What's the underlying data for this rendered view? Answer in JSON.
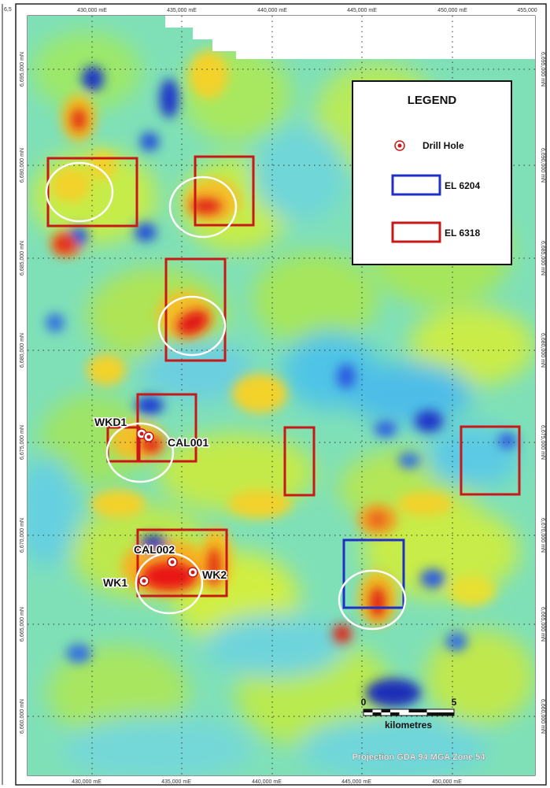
{
  "map": {
    "corner_label": "6,5",
    "easting_labels": [
      "430,000 mE",
      "435,000 mE",
      "440,000 mE",
      "445,000 mE",
      "450,000 mE",
      "455,000"
    ],
    "northing_labels_right": [
      "6,695,000 mN",
      "6,690,000 mN",
      "6,685,000 mN",
      "6,680,000 mN",
      "6,675,000 mN",
      "6,670,000 mN",
      "6,665,000 mN",
      "6,660,000 mN"
    ],
    "northing_labels_left": [
      "6,695,000 mN",
      "6,690,000 mN",
      "6,685,000 mN",
      "6,680,000 mN",
      "6,675,000 mN",
      "6,670,000 mN",
      "6,665,000 mN",
      "6,660,000 mN"
    ],
    "drill_holes": [
      {
        "label": "WKD1"
      },
      {
        "label": "CAL001"
      },
      {
        "label": "CAL002"
      },
      {
        "label": "WK1"
      },
      {
        "label": "WK2"
      }
    ],
    "legend": {
      "title": "LEGEND",
      "drill_hole_label": "Drill Hole",
      "el6204_label": "EL 6204",
      "el6318_label": "EL 6318",
      "el6204_color": "#1f2fc8",
      "el6318_color": "#d01818"
    },
    "scale_bar": {
      "start": "0",
      "end": "5",
      "unit": "kilometres"
    },
    "projection": "Projection GDA 94 MGA Zone 54"
  }
}
